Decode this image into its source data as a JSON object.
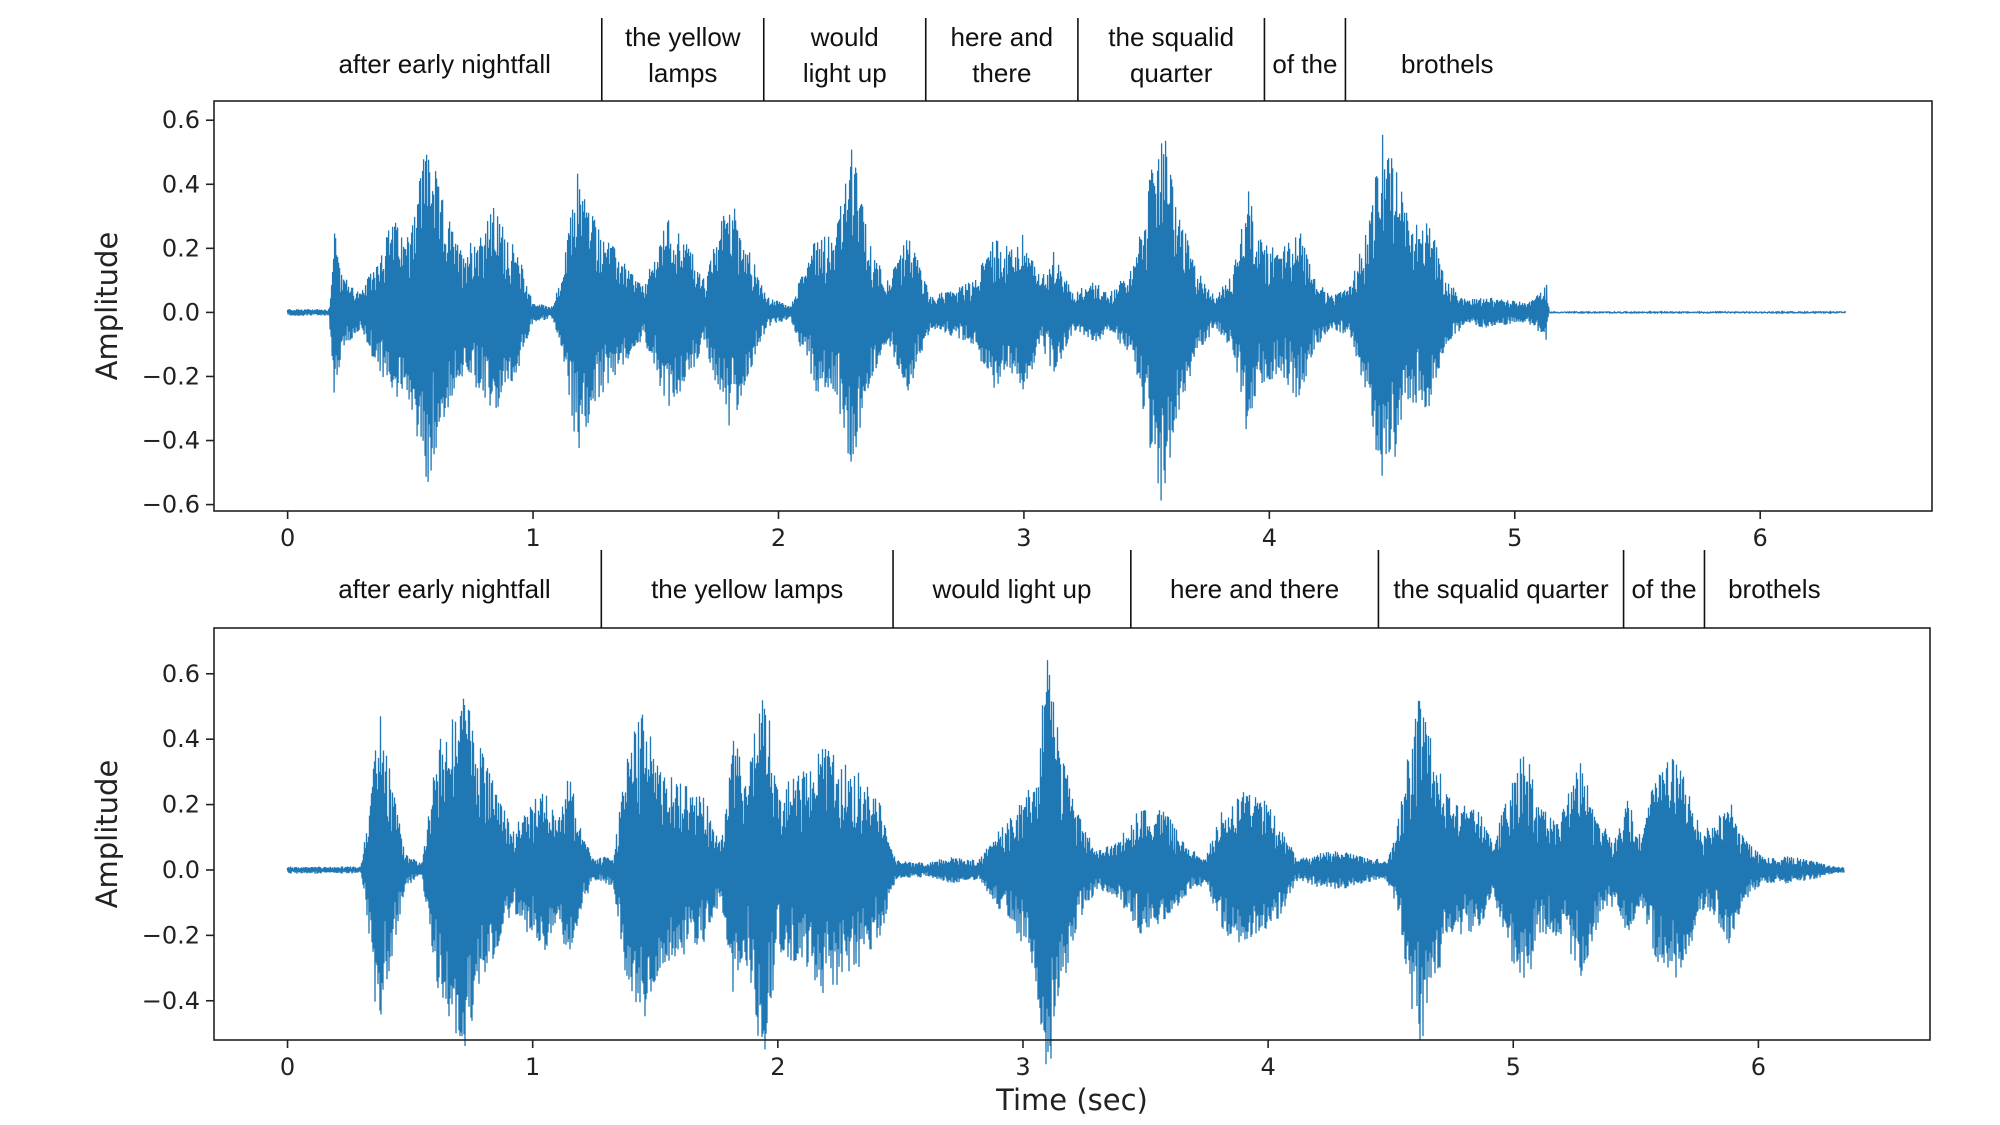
{
  "chart_data": [
    {
      "type": "line",
      "title": "",
      "xlabel": "",
      "ylabel": "Amplitude",
      "xlim": [
        -0.3,
        6.7
      ],
      "ylim": [
        -0.62,
        0.66
      ],
      "xticks": [
        0,
        1,
        2,
        3,
        4,
        5,
        6
      ],
      "yticks": [
        -0.6,
        -0.4,
        -0.2,
        0.0,
        0.2,
        0.4,
        0.6
      ],
      "ytick_labels": [
        "−0.6",
        "−0.4",
        "−0.2",
        "0.0",
        "0.2",
        "0.4",
        "0.6"
      ],
      "grid": false,
      "color": "#1f77b4",
      "duration": 6.35,
      "series": [
        {
          "values_note_free": true,
          "envelope": [
            [
              0.0,
              0.01
            ],
            [
              0.17,
              0.01
            ],
            [
              0.19,
              0.29
            ],
            [
              0.22,
              0.12
            ],
            [
              0.3,
              0.06
            ],
            [
              0.37,
              0.18
            ],
            [
              0.43,
              0.3
            ],
            [
              0.48,
              0.22
            ],
            [
              0.57,
              0.56
            ],
            [
              0.62,
              0.38
            ],
            [
              0.7,
              0.2
            ],
            [
              0.78,
              0.25
            ],
            [
              0.84,
              0.33
            ],
            [
              0.9,
              0.24
            ],
            [
              0.95,
              0.16
            ],
            [
              1.0,
              0.03
            ],
            [
              1.08,
              0.02
            ],
            [
              1.12,
              0.12
            ],
            [
              1.18,
              0.45
            ],
            [
              1.25,
              0.3
            ],
            [
              1.35,
              0.18
            ],
            [
              1.45,
              0.08
            ],
            [
              1.55,
              0.3
            ],
            [
              1.63,
              0.22
            ],
            [
              1.7,
              0.1
            ],
            [
              1.8,
              0.38
            ],
            [
              1.87,
              0.22
            ],
            [
              1.95,
              0.05
            ],
            [
              2.05,
              0.02
            ],
            [
              2.15,
              0.25
            ],
            [
              2.23,
              0.25
            ],
            [
              2.3,
              0.52
            ],
            [
              2.37,
              0.22
            ],
            [
              2.45,
              0.1
            ],
            [
              2.53,
              0.25
            ],
            [
              2.62,
              0.05
            ],
            [
              2.7,
              0.07
            ],
            [
              2.8,
              0.1
            ],
            [
              2.87,
              0.24
            ],
            [
              2.95,
              0.2
            ],
            [
              3.0,
              0.25
            ],
            [
              3.07,
              0.1
            ],
            [
              3.12,
              0.2
            ],
            [
              3.2,
              0.06
            ],
            [
              3.28,
              0.1
            ],
            [
              3.35,
              0.06
            ],
            [
              3.45,
              0.15
            ],
            [
              3.52,
              0.45
            ],
            [
              3.56,
              0.62
            ],
            [
              3.62,
              0.35
            ],
            [
              3.7,
              0.14
            ],
            [
              3.78,
              0.05
            ],
            [
              3.85,
              0.12
            ],
            [
              3.91,
              0.4
            ],
            [
              3.97,
              0.22
            ],
            [
              4.05,
              0.2
            ],
            [
              4.12,
              0.28
            ],
            [
              4.18,
              0.12
            ],
            [
              4.25,
              0.05
            ],
            [
              4.33,
              0.08
            ],
            [
              4.4,
              0.28
            ],
            [
              4.47,
              0.6
            ],
            [
              4.52,
              0.45
            ],
            [
              4.57,
              0.28
            ],
            [
              4.65,
              0.3
            ],
            [
              4.72,
              0.1
            ],
            [
              4.8,
              0.04
            ],
            [
              4.88,
              0.05
            ],
            [
              4.95,
              0.04
            ],
            [
              5.05,
              0.03
            ],
            [
              5.1,
              0.06
            ],
            [
              5.13,
              0.09
            ],
            [
              5.14,
              0.0
            ],
            [
              6.35,
              0.0
            ]
          ]
        }
      ],
      "segments": [
        {
          "label": [
            "after early nightfall"
          ],
          "start": 0.0,
          "end": 1.28
        },
        {
          "label": [
            "the yellow",
            "lamps"
          ],
          "start": 1.28,
          "end": 1.94
        },
        {
          "label": [
            "would",
            "light up"
          ],
          "start": 1.94,
          "end": 2.6
        },
        {
          "label": [
            "here and",
            "there"
          ],
          "start": 2.6,
          "end": 3.22
        },
        {
          "label": [
            "the squalid",
            "quarter"
          ],
          "start": 3.22,
          "end": 3.98
        },
        {
          "label": [
            "of the"
          ],
          "start": 3.98,
          "end": 4.31
        },
        {
          "label": [
            "brothels"
          ],
          "start": 4.31,
          "end": 5.14
        }
      ]
    },
    {
      "type": "line",
      "title": "",
      "xlabel": "Time (sec)",
      "ylabel": "Amplitude",
      "xlim": [
        -0.3,
        6.7
      ],
      "ylim": [
        -0.52,
        0.74
      ],
      "xticks": [
        0,
        1,
        2,
        3,
        4,
        5,
        6
      ],
      "yticks": [
        -0.4,
        -0.2,
        0.0,
        0.2,
        0.4,
        0.6
      ],
      "ytick_labels": [
        "−0.4",
        "−0.2",
        "0.0",
        "0.2",
        "0.4",
        "0.6"
      ],
      "grid": false,
      "color": "#1f77b4",
      "duration": 6.35,
      "series": [
        {
          "envelope": [
            [
              0.0,
              0.01
            ],
            [
              0.3,
              0.01
            ],
            [
              0.33,
              0.2
            ],
            [
              0.37,
              0.52
            ],
            [
              0.42,
              0.3
            ],
            [
              0.48,
              0.05
            ],
            [
              0.55,
              0.02
            ],
            [
              0.6,
              0.35
            ],
            [
              0.67,
              0.5
            ],
            [
              0.72,
              0.55
            ],
            [
              0.78,
              0.4
            ],
            [
              0.85,
              0.25
            ],
            [
              0.92,
              0.12
            ],
            [
              0.98,
              0.2
            ],
            [
              1.05,
              0.25
            ],
            [
              1.1,
              0.15
            ],
            [
              1.15,
              0.3
            ],
            [
              1.2,
              0.12
            ],
            [
              1.25,
              0.03
            ],
            [
              1.33,
              0.05
            ],
            [
              1.38,
              0.35
            ],
            [
              1.45,
              0.5
            ],
            [
              1.52,
              0.3
            ],
            [
              1.6,
              0.27
            ],
            [
              1.7,
              0.22
            ],
            [
              1.77,
              0.1
            ],
            [
              1.82,
              0.4
            ],
            [
              1.88,
              0.3
            ],
            [
              1.94,
              0.62
            ],
            [
              2.0,
              0.25
            ],
            [
              2.1,
              0.3
            ],
            [
              2.18,
              0.38
            ],
            [
              2.25,
              0.35
            ],
            [
              2.33,
              0.3
            ],
            [
              2.42,
              0.2
            ],
            [
              2.48,
              0.03
            ],
            [
              2.6,
              0.02
            ],
            [
              2.7,
              0.04
            ],
            [
              2.82,
              0.03
            ],
            [
              2.9,
              0.12
            ],
            [
              2.98,
              0.2
            ],
            [
              3.05,
              0.32
            ],
            [
              3.1,
              0.68
            ],
            [
              3.15,
              0.4
            ],
            [
              3.22,
              0.18
            ],
            [
              3.3,
              0.06
            ],
            [
              3.38,
              0.08
            ],
            [
              3.48,
              0.2
            ],
            [
              3.58,
              0.18
            ],
            [
              3.68,
              0.06
            ],
            [
              3.75,
              0.05
            ],
            [
              3.82,
              0.2
            ],
            [
              3.9,
              0.24
            ],
            [
              3.98,
              0.22
            ],
            [
              4.05,
              0.15
            ],
            [
              4.12,
              0.03
            ],
            [
              4.2,
              0.05
            ],
            [
              4.3,
              0.06
            ],
            [
              4.4,
              0.04
            ],
            [
              4.48,
              0.03
            ],
            [
              4.52,
              0.1
            ],
            [
              4.58,
              0.4
            ],
            [
              4.62,
              0.55
            ],
            [
              4.68,
              0.35
            ],
            [
              4.75,
              0.2
            ],
            [
              4.85,
              0.2
            ],
            [
              4.92,
              0.08
            ],
            [
              5.0,
              0.3
            ],
            [
              5.05,
              0.4
            ],
            [
              5.1,
              0.2
            ],
            [
              5.2,
              0.2
            ],
            [
              5.28,
              0.35
            ],
            [
              5.35,
              0.15
            ],
            [
              5.42,
              0.1
            ],
            [
              5.47,
              0.22
            ],
            [
              5.52,
              0.1
            ],
            [
              5.58,
              0.3
            ],
            [
              5.64,
              0.35
            ],
            [
              5.7,
              0.3
            ],
            [
              5.77,
              0.12
            ],
            [
              5.83,
              0.15
            ],
            [
              5.88,
              0.23
            ],
            [
              5.94,
              0.1
            ],
            [
              6.02,
              0.04
            ],
            [
              6.12,
              0.04
            ],
            [
              6.22,
              0.03
            ],
            [
              6.3,
              0.01
            ],
            [
              6.35,
              0.01
            ]
          ]
        }
      ],
      "segments": [
        {
          "label": [
            "after early nightfall"
          ],
          "start": 0.0,
          "end": 1.28
        },
        {
          "label": [
            "the yellow lamps"
          ],
          "start": 1.28,
          "end": 2.47
        },
        {
          "label": [
            "would light up"
          ],
          "start": 2.47,
          "end": 3.44
        },
        {
          "label": [
            "here and there"
          ],
          "start": 3.44,
          "end": 4.45
        },
        {
          "label": [
            "the squalid quarter"
          ],
          "start": 4.45,
          "end": 5.45
        },
        {
          "label": [
            "of the"
          ],
          "start": 5.45,
          "end": 5.78
        },
        {
          "label": [
            "brothels"
          ],
          "start": 5.78,
          "end": 6.35
        }
      ]
    }
  ]
}
